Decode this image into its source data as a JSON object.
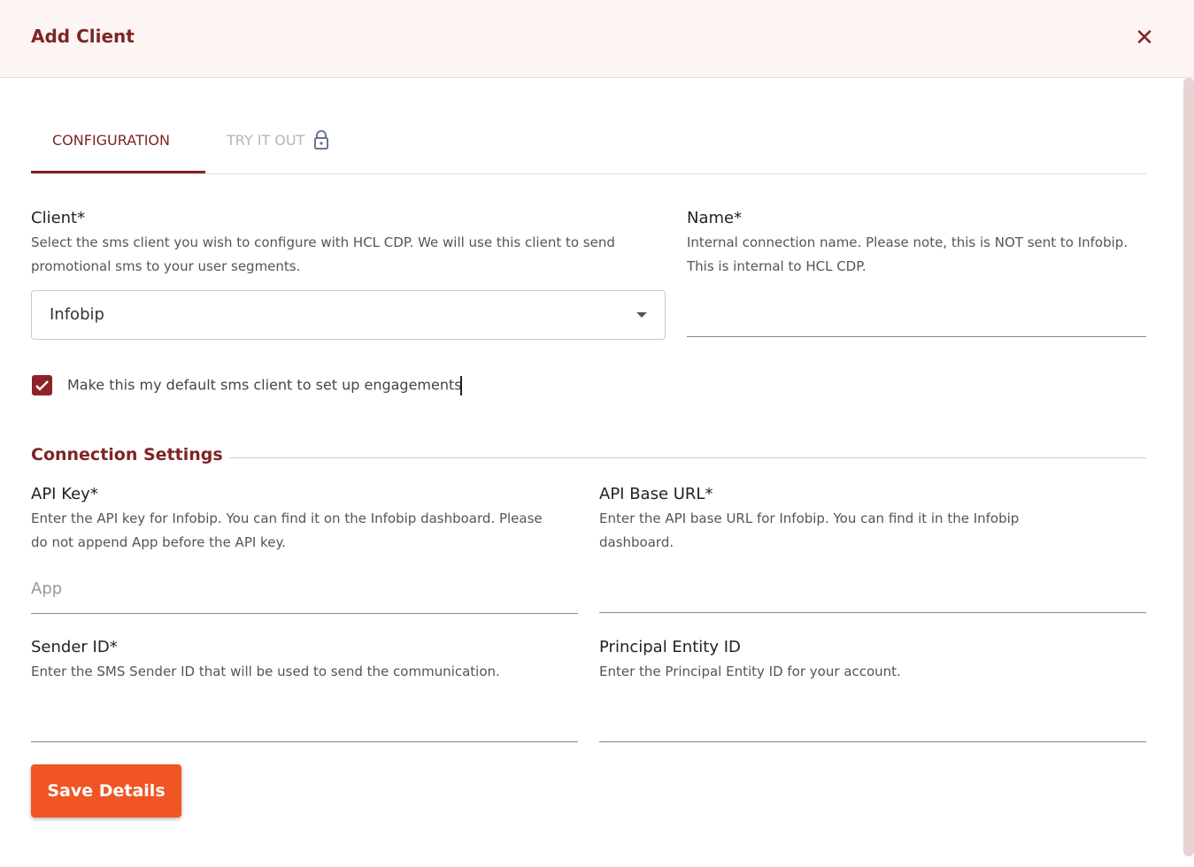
{
  "header": {
    "title": "Add Client",
    "close_icon": "close-icon"
  },
  "tabs": [
    {
      "label": "CONFIGURATION",
      "active": true
    },
    {
      "label": "TRY IT OUT",
      "locked": true
    }
  ],
  "client": {
    "label": "Client*",
    "help": "Select the sms client you wish to configure with HCL CDP. We will use this client to send promotional sms to your user segments.",
    "value": "Infobip"
  },
  "name": {
    "label": "Name*",
    "help": "Internal connection name. Please note, this is NOT sent to Infobip. This is internal to HCL CDP.",
    "value": ""
  },
  "default_checkbox": {
    "label": "Make this my default sms client to set up engagements",
    "checked": true
  },
  "connection": {
    "title": "Connection Settings",
    "api_key": {
      "label": "API Key*",
      "help": "Enter the API key for Infobip. You can find it on the Infobip dashboard. Please do not append App before the API key.",
      "placeholder": "App"
    },
    "api_base_url": {
      "label": "API Base URL*",
      "help": "Enter the API base URL for Infobip. You can find it in the Infobip dashboard.",
      "value": ""
    },
    "sender_id": {
      "label": "Sender ID*",
      "help": "Enter the SMS Sender ID that will be used to send the communication.",
      "value": ""
    },
    "principal_entity_id": {
      "label": "Principal Entity ID",
      "help": "Enter the Principal Entity ID for your account.",
      "value": ""
    }
  },
  "save_label": "Save Details",
  "colors": {
    "accent": "#7f2426",
    "button": "#f05523"
  }
}
